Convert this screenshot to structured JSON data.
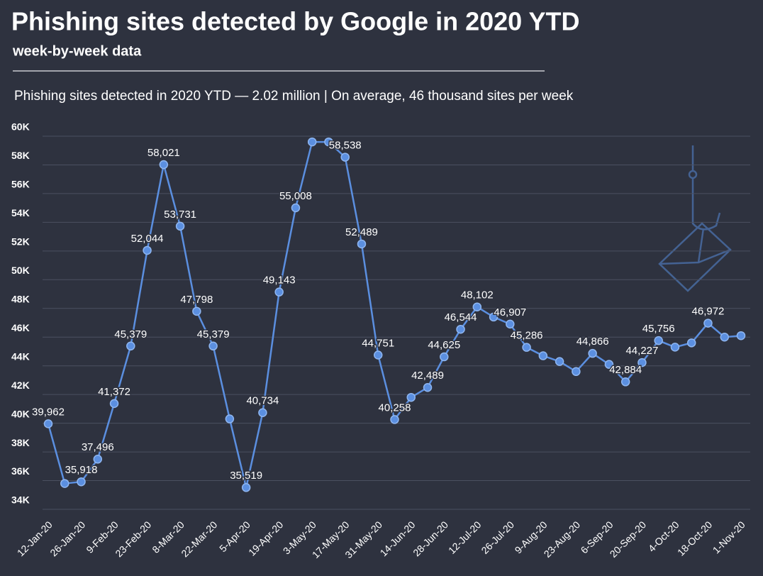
{
  "chart_data": {
    "type": "line",
    "title": "Phishing sites detected by Google in 2020 YTD",
    "subtitle": "week-by-week data",
    "annotation": "Phishing sites detected in 2020 YTD — 2.02 million | On average, 46 thousand sites per week",
    "categories": [
      "12-Jan-20",
      null,
      "26-Jan-20",
      null,
      "9-Feb-20",
      null,
      "23-Feb-20",
      null,
      "8-Mar-20",
      null,
      "22-Mar-20",
      null,
      "5-Apr-20",
      null,
      "19-Apr-20",
      null,
      "3-May-20",
      null,
      "17-May-20",
      null,
      "31-May-20",
      null,
      "14-Jun-20",
      null,
      "28-Jun-20",
      null,
      "12-Jul-20",
      null,
      "26-Jul-20",
      null,
      "9-Aug-20",
      null,
      "23-Aug-20",
      null,
      "6-Sep-20",
      null,
      "20-Sep-20",
      null,
      "4-Oct-20",
      null,
      "18-Oct-20",
      null,
      "1-Nov-20"
    ],
    "series": [
      {
        "name": "Phishing sites",
        "color": "#5b8fe0",
        "values": [
          39962,
          35800,
          35918,
          37496,
          41372,
          45379,
          52044,
          58021,
          53731,
          47798,
          45379,
          40300,
          35519,
          40734,
          49143,
          55008,
          59600,
          59600,
          58538,
          52489,
          44751,
          40258,
          41800,
          42489,
          44625,
          46544,
          48102,
          47400,
          46907,
          45286,
          44700,
          44300,
          43600,
          44866,
          44100,
          42884,
          44227,
          45756,
          45300,
          45600,
          46972,
          46000,
          46100
        ],
        "value_labels": [
          "39,962",
          null,
          "35,918",
          "37,496",
          "41,372",
          "45,379",
          "52,044",
          "58,021",
          "53,731",
          "47,798",
          "45,379",
          null,
          "35,519",
          "40,734",
          "49,143",
          "55,008",
          null,
          null,
          "58,538",
          "52,489",
          "44,751",
          "40,258",
          null,
          "42,489",
          "44,625",
          "46,544",
          "48,102",
          null,
          "46,907",
          "45,286",
          null,
          null,
          null,
          "44,866",
          null,
          "42,884",
          "44,227",
          "45,756",
          null,
          null,
          "46,972",
          null,
          null
        ]
      }
    ],
    "ylim": [
      34000,
      60000
    ],
    "yticks": [
      {
        "value": 34000,
        "label": "34K"
      },
      {
        "value": 36000,
        "label": "36K"
      },
      {
        "value": 38000,
        "label": "38K"
      },
      {
        "value": 40000,
        "label": "40K"
      },
      {
        "value": 42000,
        "label": "42K"
      },
      {
        "value": 44000,
        "label": "44K"
      },
      {
        "value": 46000,
        "label": "46K"
      },
      {
        "value": 48000,
        "label": "48K"
      },
      {
        "value": 50000,
        "label": "50K"
      },
      {
        "value": 52000,
        "label": "52K"
      },
      {
        "value": 54000,
        "label": "54K"
      },
      {
        "value": 56000,
        "label": "56K"
      },
      {
        "value": 58000,
        "label": "58K"
      },
      {
        "value": 60000,
        "label": "60K"
      }
    ],
    "grid": true
  }
}
